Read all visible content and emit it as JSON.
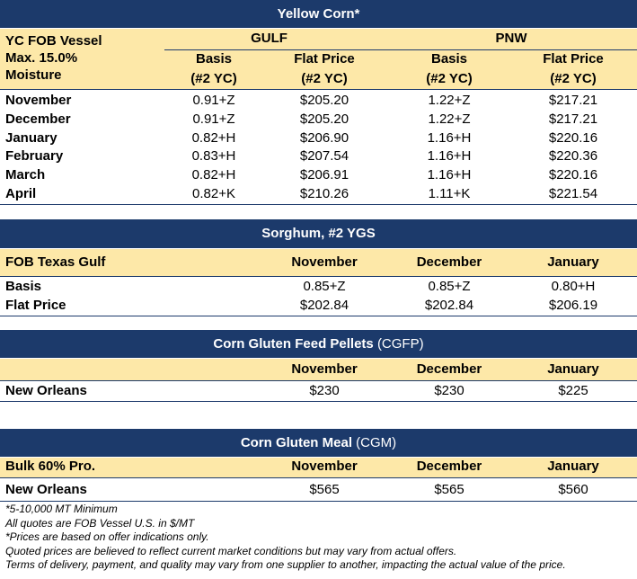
{
  "yellow_corn": {
    "title": "Yellow Corn*",
    "row_label": [
      "YC FOB Vessel",
      "Max. 15.0%",
      "Moisture"
    ],
    "groups": [
      "GULF",
      "PNW"
    ],
    "columns": [
      [
        "Basis",
        "(#2 YC)"
      ],
      [
        "Flat Price",
        "(#2 YC)"
      ],
      [
        "Basis",
        "(#2 YC)"
      ],
      [
        "Flat Price",
        "(#2 YC)"
      ]
    ],
    "rows": [
      [
        "November",
        "0.91+Z",
        "$205.20",
        "1.22+Z",
        "$217.21"
      ],
      [
        "December",
        "0.91+Z",
        "$205.20",
        "1.22+Z",
        "$217.21"
      ],
      [
        "January",
        "0.82+H",
        "$206.90",
        "1.16+H",
        "$220.16"
      ],
      [
        "February",
        "0.83+H",
        "$207.54",
        "1.16+H",
        "$220.36"
      ],
      [
        "March",
        "0.82+H",
        "$206.91",
        "1.16+H",
        "$220.16"
      ],
      [
        "April",
        "0.82+K",
        "$210.26",
        "1.11+K",
        "$221.54"
      ]
    ]
  },
  "sorghum": {
    "title": "Sorghum,  #2 YGS",
    "header": [
      "FOB Texas Gulf",
      "November",
      "December",
      "January"
    ],
    "rows": [
      [
        "Basis",
        "0.85+Z",
        "0.85+Z",
        "0.80+H"
      ],
      [
        "Flat Price",
        "$202.84",
        "$202.84",
        "$206.19"
      ]
    ]
  },
  "cgfp": {
    "title": "Corn Gluten Feed Pellets",
    "title_suffix": "(CGFP)",
    "header": [
      "November",
      "December",
      "January"
    ],
    "rows": [
      [
        "New Orleans",
        "$230",
        "$230",
        "$225"
      ]
    ]
  },
  "cgm": {
    "title": "Corn Gluten Meal",
    "title_suffix": "(CGM)",
    "header": [
      "Bulk 60% Pro.",
      "November",
      "December",
      "January"
    ],
    "rows": [
      [
        "New Orleans",
        "$565",
        "$565",
        "$560"
      ]
    ]
  },
  "footnotes": [
    "*5-10,000 MT Minimum",
    "All quotes are FOB Vessel U.S. in $/MT",
    "*Prices are based on offer indications only.",
    "Quoted prices are believed to reflect current market conditions but may vary from actual offers.",
    "Terms of delivery, payment, and quality may vary from one supplier to another, impacting the actual value of the price."
  ]
}
